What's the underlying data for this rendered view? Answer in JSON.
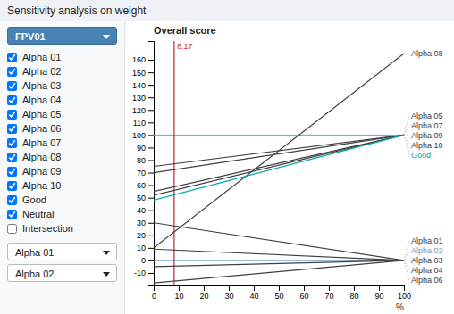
{
  "chart_data": {
    "type": "line",
    "title": "Sensitivity analysis on weight",
    "subtitle": "Overall score",
    "xlabel": "%",
    "x": [
      0,
      100
    ],
    "series": [
      {
        "name": "Alpha 08",
        "color": "#404040",
        "values": [
          10,
          165
        ]
      },
      {
        "name": "Alpha 05",
        "color": "#404040",
        "values": [
          75,
          100
        ]
      },
      {
        "name": "Alpha 07",
        "color": "#404040",
        "values": [
          70,
          100
        ]
      },
      {
        "name": "Alpha 09",
        "color": "#404040",
        "values": [
          55,
          100
        ]
      },
      {
        "name": "Alpha 10",
        "color": "#404040",
        "values": [
          52,
          100
        ]
      },
      {
        "name": "Good",
        "color": "#00aaaa",
        "values": [
          48,
          100
        ]
      },
      {
        "name": "Alpha 01",
        "color": "#404040",
        "values": [
          9,
          0
        ]
      },
      {
        "name": "Alpha 02",
        "color": "#7799bb",
        "values": [
          0,
          0
        ]
      },
      {
        "name": "Alpha 03",
        "color": "#404040",
        "values": [
          -5,
          0
        ]
      },
      {
        "name": "Alpha 04",
        "color": "#404040",
        "values": [
          -18,
          0
        ]
      },
      {
        "name": "Alpha 06",
        "color": "#404040",
        "values": [
          30,
          0
        ]
      }
    ],
    "xlim": [
      0,
      100
    ],
    "xticks": [
      0,
      10,
      20,
      30,
      40,
      50,
      60,
      70,
      80,
      90,
      100
    ],
    "ylim": [
      -20,
      175
    ],
    "yticks": [
      -10,
      0,
      10,
      20,
      30,
      40,
      50,
      60,
      70,
      80,
      90,
      100,
      110,
      120,
      130,
      140,
      150,
      160
    ],
    "grid": false,
    "reference_lines": [
      {
        "axis": "y",
        "value": 100,
        "color": "#44bbcc"
      },
      {
        "axis": "y",
        "value": 0,
        "color": "#44bbcc"
      },
      {
        "axis": "x",
        "value": 8.17,
        "label": "8.17",
        "color": "#cc3333"
      }
    ],
    "sidebar": {
      "dropdown": "FPV01",
      "checked": [
        "Alpha 01",
        "Alpha 02",
        "Alpha 03",
        "Alpha 04",
        "Alpha 05",
        "Alpha 06",
        "Alpha 07",
        "Alpha 08",
        "Alpha 09",
        "Alpha 10",
        "Good",
        "Neutral"
      ],
      "unchecked": [
        "Intersection"
      ],
      "selects": [
        "Alpha 01",
        "Alpha 02"
      ]
    }
  }
}
